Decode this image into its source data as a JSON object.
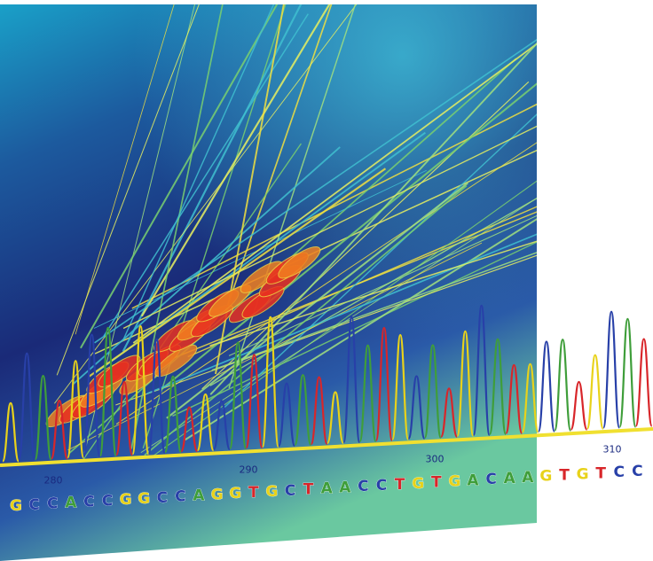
{
  "positions": [
    "280",
    "290",
    "300",
    "310"
  ],
  "sequence": [
    "G",
    "C",
    "C",
    "A",
    "C",
    "C",
    "G",
    "G",
    "C",
    "C",
    "A",
    "G",
    "G",
    "T",
    "G",
    "C",
    "T",
    "A",
    "A",
    "C",
    "C",
    "T",
    "G",
    "T",
    "G",
    "A",
    "C",
    "A",
    "A",
    "G",
    "T",
    "G",
    "T",
    "C",
    "C"
  ],
  "base_colors": {
    "A": "#3f9e3a",
    "C": "#2840a8",
    "G": "#e8d21a",
    "T": "#d8262a"
  }
}
